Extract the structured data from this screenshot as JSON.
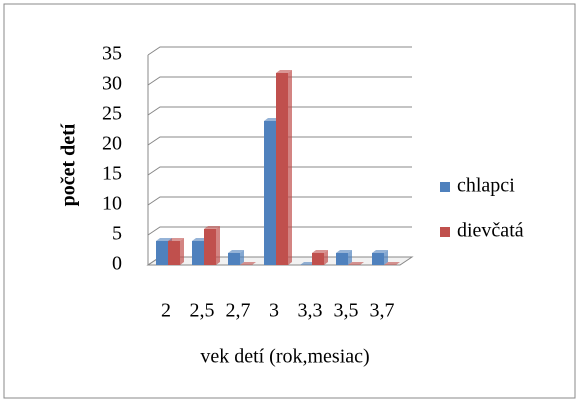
{
  "chart_data": {
    "type": "bar",
    "x_label": "vek detí (rok,mesiac)",
    "y_label": "počet detí",
    "categories": [
      "2",
      "2,5",
      "2,7",
      "3",
      "3,3",
      "3,5",
      "3,7"
    ],
    "series": [
      {
        "name": "chlapci",
        "color": "#4f81bd",
        "values": [
          4,
          4,
          2,
          24,
          0,
          2,
          2
        ]
      },
      {
        "name": "dievčatá",
        "color": "#c0504d",
        "values": [
          4,
          6,
          0,
          32,
          2,
          0,
          0
        ]
      }
    ],
    "ylim": [
      0,
      35
    ],
    "yticks": [
      0,
      5,
      10,
      15,
      20,
      25,
      30,
      35
    ],
    "grid": true,
    "legend": "right"
  }
}
